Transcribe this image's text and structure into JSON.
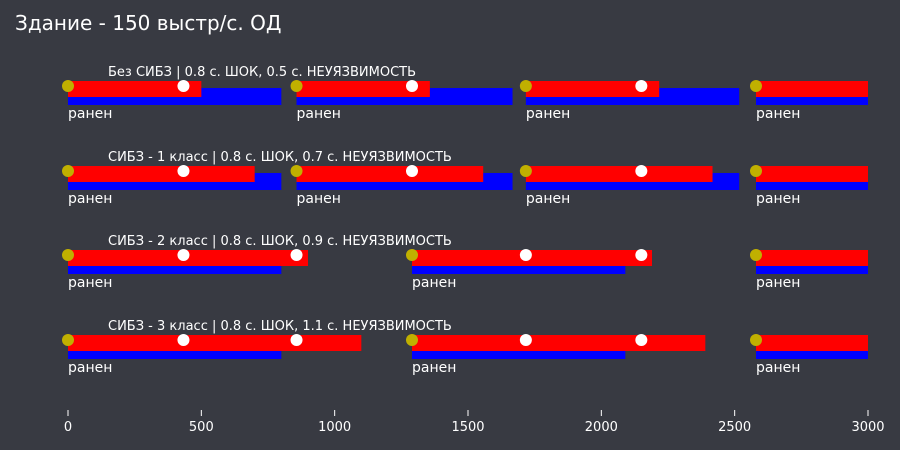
{
  "chart_data": {
    "type": "bar",
    "title": "Здание - 150 выстр/с. ОД",
    "xlim": [
      0,
      3000
    ],
    "x_ticks": [
      0,
      500,
      1000,
      1500,
      2000,
      2500,
      3000
    ],
    "x_tick_labels": [
      "0",
      "500",
      "1000",
      "1500",
      "2000",
      "2500",
      "3000"
    ],
    "grid": false,
    "legend": "none",
    "colors": {
      "background": "#383a42",
      "shock_bar": "#ff0000",
      "state_bar": "#0000ff",
      "start_marker": "#c0b000",
      "hit_marker": "#ffffff",
      "text": "#ffffff"
    },
    "rows": [
      {
        "label": "Без СИБЗ | 0.8 с. ШОК, 0.5 с. НЕУЯЗВИМОСТЬ",
        "segments": [
          {
            "start": 0,
            "red_end": 500,
            "blue_end": 800,
            "hits": [
              433
            ],
            "state": "ранен"
          },
          {
            "start": 857,
            "red_end": 1357,
            "blue_end": 1667,
            "hits": [
              1290
            ],
            "state": "ранен"
          },
          {
            "start": 1717,
            "red_end": 2217,
            "blue_end": 2517,
            "hits": [
              2150
            ],
            "state": "ранен"
          },
          {
            "start": 2580,
            "red_end": 3000,
            "blue_end": 3000,
            "hits": [],
            "state": "ранен"
          }
        ]
      },
      {
        "label": "СИБЗ - 1 класс | 0.8 с. ШОК, 0.7 с. НЕУЯЗВИМОСТЬ",
        "segments": [
          {
            "start": 0,
            "red_end": 700,
            "blue_end": 800,
            "hits": [
              433
            ],
            "state": "ранен"
          },
          {
            "start": 857,
            "red_end": 1557,
            "blue_end": 1667,
            "hits": [
              1290
            ],
            "state": "ранен"
          },
          {
            "start": 1717,
            "red_end": 2417,
            "blue_end": 2517,
            "hits": [
              2150
            ],
            "state": "ранен"
          },
          {
            "start": 2580,
            "red_end": 3000,
            "blue_end": 3000,
            "hits": [],
            "state": "ранен"
          }
        ]
      },
      {
        "label": "СИБЗ - 2 класс | 0.8 с. ШОК, 0.9 с. НЕУЯЗВИМОСТЬ",
        "segments": [
          {
            "start": 0,
            "red_end": 900,
            "blue_end": 800,
            "hits": [
              433,
              857
            ],
            "state": "ранен"
          },
          {
            "start": 1290,
            "red_end": 2190,
            "blue_end": 2090,
            "hits": [
              1717,
              2150
            ],
            "state": "ранен"
          },
          {
            "start": 2580,
            "red_end": 3000,
            "blue_end": 3000,
            "hits": [],
            "state": "ранен"
          }
        ]
      },
      {
        "label": "СИБЗ - 3 класс | 0.8 с. ШОК, 1.1 с. НЕУЯЗВИМОСТЬ",
        "segments": [
          {
            "start": 0,
            "red_end": 1100,
            "blue_end": 800,
            "hits": [
              433,
              857
            ],
            "state": "ранен"
          },
          {
            "start": 1290,
            "red_end": 2390,
            "blue_end": 2090,
            "hits": [
              1717,
              2150
            ],
            "state": "ранен"
          },
          {
            "start": 2580,
            "red_end": 3000,
            "blue_end": 3000,
            "hits": [],
            "state": "ранен"
          }
        ]
      }
    ]
  }
}
